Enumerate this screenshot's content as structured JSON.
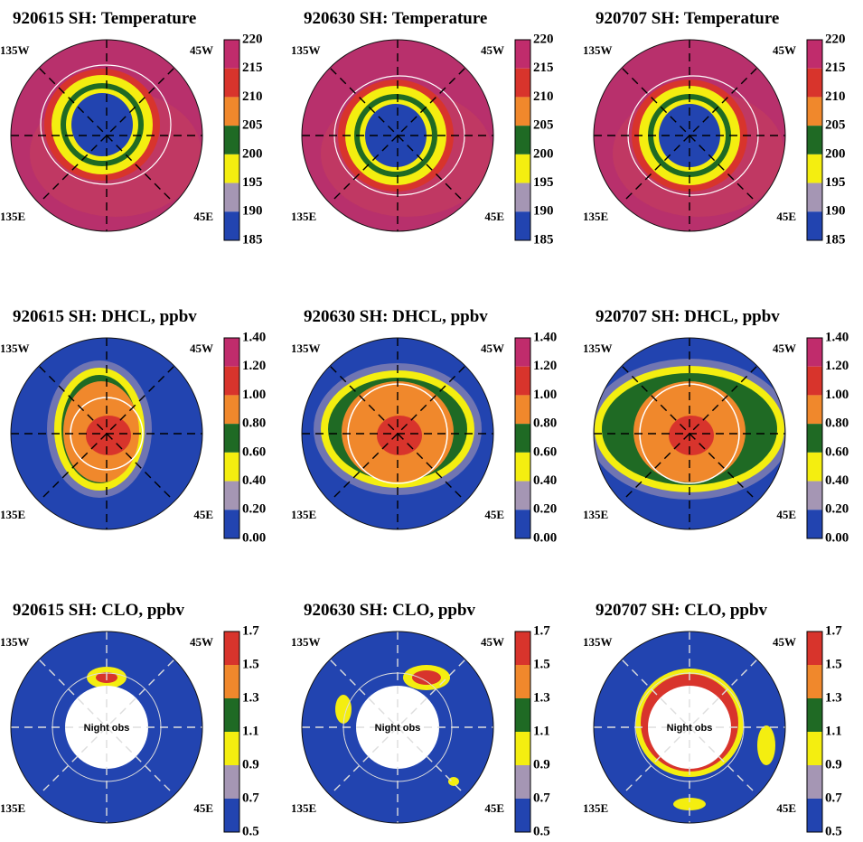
{
  "panels": [
    {
      "title": "920615 SH: Temperature",
      "corners": [
        "135W",
        "45W",
        "135E",
        "45E"
      ],
      "colorbar": [
        "220",
        "215",
        "210",
        "205",
        "200",
        "195",
        "190",
        "185"
      ]
    },
    {
      "title": "920630 SH: Temperature",
      "corners": [
        "135W",
        "45W",
        "135E",
        "45E"
      ],
      "colorbar": [
        "220",
        "215",
        "210",
        "205",
        "200",
        "195",
        "190",
        "185"
      ]
    },
    {
      "title": "920707 SH: Temperature",
      "corners": [
        "135W",
        "45W",
        "135E",
        "45E"
      ],
      "colorbar": [
        "220",
        "215",
        "210",
        "205",
        "200",
        "195",
        "190",
        "185"
      ]
    },
    {
      "title": "920615 SH: DHCL, ppbv",
      "corners": [
        "135W",
        "45W",
        "135E",
        "45E"
      ],
      "colorbar": [
        "1.40",
        "1.20",
        "1.00",
        "0.80",
        "0.60",
        "0.40",
        "0.20",
        "0.00"
      ]
    },
    {
      "title": "920630 SH: DHCL, ppbv",
      "corners": [
        "135W",
        "45W",
        "135E",
        "45E"
      ],
      "colorbar": [
        "1.40",
        "1.20",
        "1.00",
        "0.80",
        "0.60",
        "0.40",
        "0.20",
        "0.00"
      ]
    },
    {
      "title": "920707 SH: DHCL, ppbv",
      "corners": [
        "135W",
        "45W",
        "135E",
        "45E"
      ],
      "colorbar": [
        "1.40",
        "1.20",
        "1.00",
        "0.80",
        "0.60",
        "0.40",
        "0.20",
        "0.00"
      ]
    },
    {
      "title": "920615 SH: CLO, ppbv",
      "corners": [
        "135W",
        "45W",
        "135E",
        "45E"
      ],
      "colorbar": [
        "1.7",
        "1.5",
        "1.3",
        "1.1",
        "0.9",
        "0.7",
        "0.5"
      ],
      "note": "Night obs"
    },
    {
      "title": "920630 SH: CLO, ppbv",
      "corners": [
        "135W",
        "45W",
        "135E",
        "45E"
      ],
      "colorbar": [
        "1.7",
        "1.5",
        "1.3",
        "1.1",
        "0.9",
        "0.7",
        "0.5"
      ],
      "note": "Night obs"
    },
    {
      "title": "920707 SH: CLO, ppbv",
      "corners": [
        "135W",
        "45W",
        "135E",
        "45E"
      ],
      "colorbar": [
        "1.7",
        "1.5",
        "1.3",
        "1.1",
        "0.9",
        "0.7",
        "0.5"
      ],
      "note": "Night obs"
    }
  ]
}
